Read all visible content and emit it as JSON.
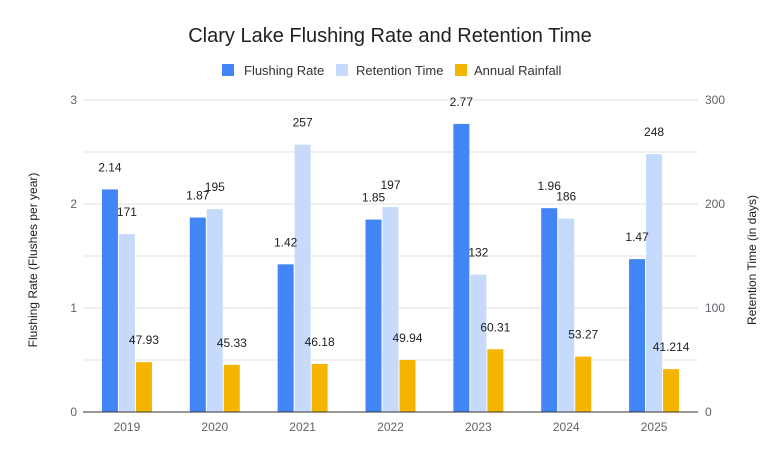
{
  "chart_data": {
    "type": "bar",
    "title": "Clary Lake Flushing Rate and Retention Time",
    "categories": [
      "2019",
      "2020",
      "2021",
      "2022",
      "2023",
      "2024",
      "2025"
    ],
    "series": [
      {
        "name": "Flushing Rate",
        "axis": "left",
        "color": "#4285f4",
        "values": [
          2.14,
          1.87,
          1.42,
          1.85,
          2.77,
          1.96,
          1.47
        ],
        "labels": [
          "2.14",
          "1.87",
          "1.42",
          "1.85",
          "2.77",
          "1.96",
          "1.47"
        ]
      },
      {
        "name": "Retention Time",
        "axis": "right",
        "color": "#c6dafc",
        "values": [
          171,
          195,
          257,
          197,
          132,
          186,
          248
        ],
        "labels": [
          "171",
          "195",
          "257",
          "197",
          "132",
          "186",
          "248"
        ]
      },
      {
        "name": "Annual Rainfall",
        "axis": "right",
        "color": "#f4b400",
        "values": [
          47.93,
          45.33,
          46.18,
          49.94,
          60.31,
          53.27,
          41.214
        ],
        "labels": [
          "47.93",
          "45.33",
          "46.18",
          "49.94",
          "60.31",
          "53.27",
          "41.214"
        ]
      }
    ],
    "left_axis": {
      "label": "Flushing Rate (Flushes per year)",
      "min": 0,
      "max": 3,
      "ticks": [
        0,
        1,
        2,
        3
      ],
      "tick_labels": [
        "0",
        "1",
        "2",
        "3"
      ]
    },
    "right_axis": {
      "label": "Retention Time (in days)",
      "min": 0,
      "max": 300,
      "ticks": [
        0,
        100,
        200,
        300
      ],
      "tick_labels": [
        "0",
        "100",
        "200",
        "300"
      ]
    },
    "minor_gridlines": true,
    "legend_position": "top-center"
  }
}
